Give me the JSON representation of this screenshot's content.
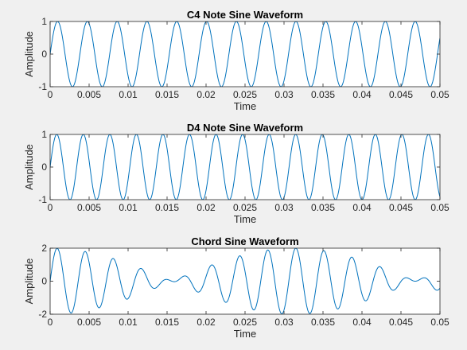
{
  "figure": {
    "background": "#f0f0f0",
    "axes_background": "#ffffff",
    "line_color": "#0072bd",
    "axis_color": "#262626"
  },
  "chart_data": [
    {
      "type": "line",
      "title": "C4 Note Sine Waveform",
      "xlabel": "Time",
      "ylabel": "Amplitude",
      "xlim": [
        0,
        0.05
      ],
      "ylim": [
        -1,
        1
      ],
      "xticks": [
        "0",
        "0.005",
        "0.01",
        "0.015",
        "0.02",
        "0.025",
        "0.03",
        "0.035",
        "0.04",
        "0.045",
        "0.05"
      ],
      "yticks": [
        "-1",
        "0",
        "1"
      ],
      "series": [
        {
          "function": "sin(2*pi*261.63*t)",
          "frequency_hz": 261.63,
          "amplitude": 1
        }
      ]
    },
    {
      "type": "line",
      "title": "D4 Note Sine Waveform",
      "xlabel": "Time",
      "ylabel": "Amplitude",
      "xlim": [
        0,
        0.05
      ],
      "ylim": [
        -1,
        1
      ],
      "xticks": [
        "0",
        "0.005",
        "0.01",
        "0.015",
        "0.02",
        "0.025",
        "0.03",
        "0.035",
        "0.04",
        "0.045",
        "0.05"
      ],
      "yticks": [
        "-1",
        "0",
        "1"
      ],
      "series": [
        {
          "function": "sin(2*pi*293.66*t)",
          "frequency_hz": 293.66,
          "amplitude": 1
        }
      ]
    },
    {
      "type": "line",
      "title": "Chord Sine Waveform",
      "xlabel": "Time",
      "ylabel": "Amplitude",
      "xlim": [
        0,
        0.05
      ],
      "ylim": [
        -2,
        2
      ],
      "xticks": [
        "0",
        "0.005",
        "0.01",
        "0.015",
        "0.02",
        "0.025",
        "0.03",
        "0.035",
        "0.04",
        "0.045",
        "0.05"
      ],
      "yticks": [
        "-2",
        "0",
        "2"
      ],
      "series": [
        {
          "function": "sin(2*pi*261.63*t) + sin(2*pi*293.66*t)",
          "components_hz": [
            261.63,
            293.66
          ]
        }
      ]
    }
  ]
}
